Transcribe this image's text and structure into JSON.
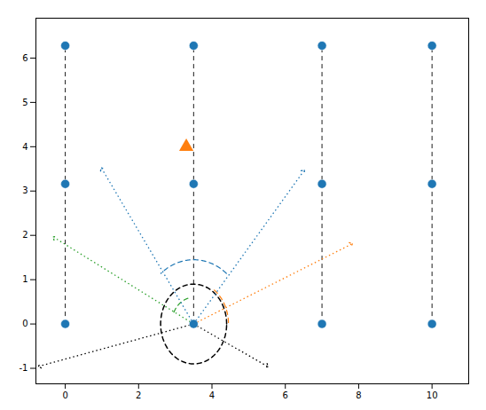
{
  "chart_data": {
    "type": "scatter",
    "xlim": [
      -0.8,
      11.0
    ],
    "ylim": [
      -1.35,
      6.9
    ],
    "xticks": [
      0,
      2,
      4,
      6,
      8,
      10
    ],
    "yticks": [
      -1,
      0,
      1,
      2,
      3,
      4,
      5,
      6
    ],
    "grid": false,
    "center": [
      3.5,
      0.0
    ],
    "dots": [
      {
        "color": "#1f77b4",
        "marker": "circle",
        "x": [
          0,
          0,
          0,
          3.5,
          3.5,
          3.5,
          7,
          7,
          7,
          10,
          10,
          10
        ],
        "y": [
          0,
          3.16,
          6.28,
          0,
          3.16,
          6.28,
          0,
          3.16,
          6.28,
          0,
          3.16,
          6.28
        ]
      },
      {
        "color": "#ff7f0e",
        "marker": "triangle",
        "x": [
          3.3
        ],
        "y": [
          4.0
        ]
      }
    ],
    "verticals": {
      "x": [
        0,
        3.5,
        7,
        10
      ],
      "y": [
        0,
        6.28
      ],
      "color": "#000000",
      "line_style": "dashed"
    },
    "circle": {
      "radius": 0.9,
      "color": "#000000",
      "line_style": "dashed"
    },
    "arrows": [
      {
        "color": "#1f77b4",
        "line_style": "dotted",
        "targets": [
          [
            1.0,
            3.5
          ],
          [
            6.5,
            3.45
          ]
        ]
      },
      {
        "color": "#ff7f0e",
        "line_style": "dotted",
        "targets": [
          [
            7.8,
            1.8
          ]
        ]
      },
      {
        "color": "#2ca02c",
        "line_style": "dotted",
        "targets": [
          [
            -0.3,
            1.95
          ]
        ]
      },
      {
        "color": "#000000",
        "line_style": "dotted",
        "targets": [
          [
            -0.7,
            -0.95
          ],
          [
            5.5,
            -0.95
          ]
        ]
      }
    ],
    "arcs": [
      {
        "color": "#1f77b4",
        "line_style": "dashed",
        "radius": 1.45,
        "theta1": 52,
        "theta2": 128
      },
      {
        "color": "#ff7f0e",
        "line_style": "dashed",
        "radius": 0.95,
        "theta1": 2,
        "theta2": 58
      },
      {
        "color": "#2ca02c",
        "line_style": "dashed",
        "radius": 0.6,
        "theta1": 105,
        "theta2": 158
      }
    ]
  }
}
